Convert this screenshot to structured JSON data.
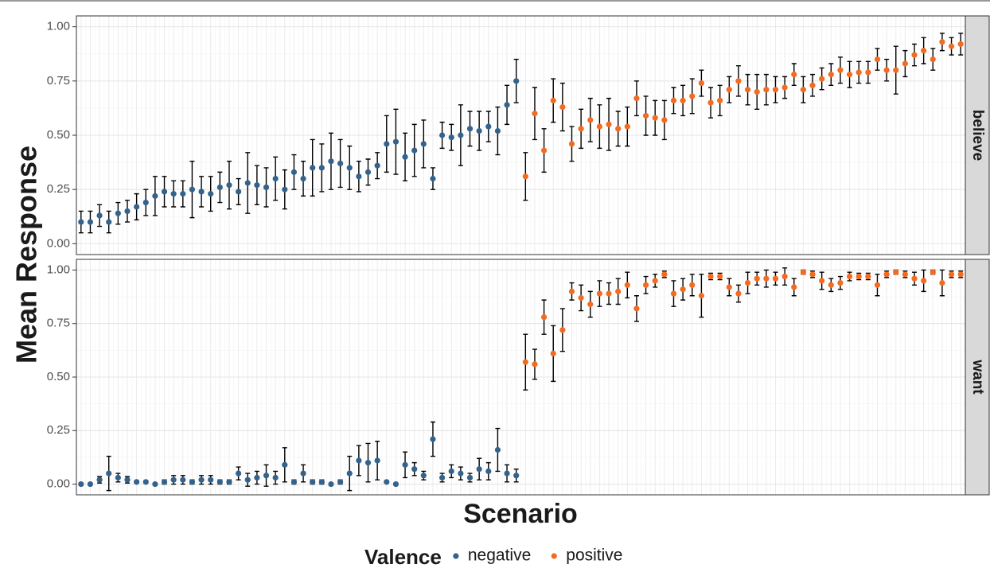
{
  "chart_data": {
    "type": "scatter",
    "y_label": "Mean Response",
    "x_label": "Scenario",
    "legend_title": "Valence",
    "ylim": [
      -0.05,
      1.05
    ],
    "yticks": [
      {
        "value": 0,
        "label": "0.00"
      },
      {
        "value": 0.25,
        "label": "0.25"
      },
      {
        "value": 0.5,
        "label": "0.50"
      },
      {
        "value": 0.75,
        "label": "0.75"
      },
      {
        "value": 1,
        "label": "1.00"
      }
    ],
    "grid": true,
    "categories": [
      null,
      null,
      null,
      null,
      null,
      null,
      null,
      null,
      null,
      null,
      null,
      null,
      null,
      null,
      null,
      null,
      null,
      null,
      null,
      null,
      null,
      null,
      null,
      null,
      null,
      null,
      null,
      null,
      null,
      null,
      null,
      null,
      null,
      null,
      null,
      null,
      null,
      null,
      null,
      null,
      null,
      null,
      null,
      null,
      null,
      null,
      null,
      null,
      null,
      null,
      null,
      null,
      null,
      null,
      null,
      null,
      null,
      null,
      null,
      null,
      null,
      null,
      null,
      null,
      null,
      null,
      null,
      null,
      null,
      null,
      null,
      null,
      null,
      null,
      null,
      null,
      null,
      null,
      null,
      null,
      null,
      null,
      null,
      null,
      null,
      null,
      null,
      null,
      null,
      null,
      null,
      null,
      null,
      null,
      null,
      null
    ],
    "facets": [
      {
        "label": "believe",
        "series": [
          {
            "name": "negative",
            "color": "#33638d",
            "values": [
              0.1,
              0.1,
              0.13,
              0.1,
              0.14,
              0.15,
              0.17,
              0.19,
              0.22,
              0.24,
              0.23,
              0.23,
              0.25,
              0.24,
              0.23,
              0.26,
              0.27,
              0.24,
              0.28,
              0.27,
              0.26,
              0.3,
              0.25,
              0.33,
              0.3,
              0.35,
              0.35,
              0.38,
              0.37,
              0.35,
              0.31,
              0.33,
              0.36,
              0.46,
              0.47,
              0.4,
              0.43,
              0.46,
              0.3,
              0.5,
              0.49,
              0.5,
              0.53,
              0.52,
              0.54,
              0.52,
              0.64,
              0.75,
              null,
              null,
              null,
              null,
              null,
              null,
              null,
              null,
              null,
              null,
              null,
              null,
              null,
              null,
              null,
              null,
              null,
              null,
              null,
              null,
              null,
              null,
              null,
              null,
              null,
              null,
              null,
              null,
              null,
              null,
              null,
              null,
              null,
              null,
              null,
              null,
              null,
              null,
              null,
              null,
              null,
              null,
              null,
              null,
              null,
              null,
              null,
              null
            ],
            "errors": [
              0.05,
              0.05,
              0.05,
              0.05,
              0.05,
              0.05,
              0.06,
              0.06,
              0.09,
              0.07,
              0.06,
              0.06,
              0.13,
              0.07,
              0.08,
              0.07,
              0.11,
              0.06,
              0.14,
              0.09,
              0.09,
              0.1,
              0.09,
              0.08,
              0.08,
              0.13,
              0.11,
              0.13,
              0.11,
              0.1,
              0.07,
              0.06,
              0.06,
              0.13,
              0.15,
              0.11,
              0.12,
              0.11,
              0.05,
              0.06,
              0.06,
              0.14,
              0.08,
              0.09,
              0.07,
              0.11,
              0.09,
              0.1,
              null,
              null,
              null,
              null,
              null,
              null,
              null,
              null,
              null,
              null,
              null,
              null,
              null,
              null,
              null,
              null,
              null,
              null,
              null,
              null,
              null,
              null,
              null,
              null,
              null,
              null,
              null,
              null,
              null,
              null,
              null,
              null,
              null,
              null,
              null,
              null,
              null,
              null,
              null,
              null,
              null,
              null,
              null,
              null,
              null,
              null,
              null,
              null
            ]
          },
          {
            "name": "positive",
            "color": "#f26b21",
            "values": [
              null,
              null,
              null,
              null,
              null,
              null,
              null,
              null,
              null,
              null,
              null,
              null,
              null,
              null,
              null,
              null,
              null,
              null,
              null,
              null,
              null,
              null,
              null,
              null,
              null,
              null,
              null,
              null,
              null,
              null,
              null,
              null,
              null,
              null,
              null,
              null,
              null,
              null,
              null,
              null,
              null,
              null,
              null,
              null,
              null,
              null,
              null,
              null,
              0.31,
              0.6,
              0.43,
              0.66,
              0.63,
              0.46,
              0.53,
              0.57,
              0.54,
              0.55,
              0.53,
              0.54,
              0.67,
              0.59,
              0.58,
              0.57,
              0.66,
              0.66,
              0.68,
              0.74,
              0.65,
              0.66,
              0.71,
              0.75,
              0.71,
              0.7,
              0.71,
              0.71,
              0.72,
              0.78,
              0.71,
              0.73,
              0.76,
              0.78,
              0.8,
              0.78,
              0.79,
              0.79,
              0.85,
              0.8,
              0.8,
              0.83,
              0.87,
              0.89,
              0.85,
              0.93,
              0.91,
              0.92
            ],
            "errors": [
              null,
              null,
              null,
              null,
              null,
              null,
              null,
              null,
              null,
              null,
              null,
              null,
              null,
              null,
              null,
              null,
              null,
              null,
              null,
              null,
              null,
              null,
              null,
              null,
              null,
              null,
              null,
              null,
              null,
              null,
              null,
              null,
              null,
              null,
              null,
              null,
              null,
              null,
              null,
              null,
              null,
              null,
              null,
              null,
              null,
              null,
              null,
              null,
              0.11,
              0.12,
              0.1,
              0.1,
              0.11,
              0.08,
              0.09,
              0.1,
              0.1,
              0.12,
              0.08,
              0.09,
              0.08,
              0.09,
              0.08,
              0.09,
              0.06,
              0.07,
              0.08,
              0.06,
              0.07,
              0.07,
              0.06,
              0.07,
              0.07,
              0.08,
              0.07,
              0.06,
              0.05,
              0.05,
              0.06,
              0.05,
              0.05,
              0.05,
              0.06,
              0.06,
              0.05,
              0.05,
              0.05,
              0.05,
              0.11,
              0.06,
              0.05,
              0.06,
              0.05,
              0.04,
              0.04,
              0.05
            ]
          }
        ]
      },
      {
        "label": "want",
        "series": [
          {
            "name": "negative",
            "color": "#33638d",
            "values": [
              0.0,
              0.0,
              0.02,
              0.05,
              0.03,
              0.02,
              0.01,
              0.01,
              0.0,
              0.01,
              0.02,
              0.02,
              0.01,
              0.02,
              0.02,
              0.01,
              0.01,
              0.05,
              0.02,
              0.03,
              0.04,
              0.03,
              0.09,
              0.01,
              0.05,
              0.01,
              0.01,
              0.0,
              0.01,
              0.05,
              0.11,
              0.1,
              0.11,
              0.01,
              0.0,
              0.09,
              0.07,
              0.04,
              0.21,
              0.03,
              0.06,
              0.05,
              0.03,
              0.07,
              0.06,
              0.16,
              0.05,
              0.04,
              null,
              null,
              null,
              null,
              null,
              null,
              null,
              null,
              null,
              null,
              null,
              null,
              null,
              null,
              null,
              null,
              null,
              null,
              null,
              null,
              null,
              null,
              null,
              null,
              null,
              null,
              null,
              null,
              null,
              null,
              null,
              null,
              null,
              null,
              null,
              null,
              null,
              null,
              null,
              null,
              null,
              null,
              null,
              null,
              null,
              null,
              null,
              null
            ],
            "errors": [
              0.005,
              0.005,
              0.015,
              0.08,
              0.02,
              0.015,
              0.005,
              0.005,
              0.005,
              0.01,
              0.02,
              0.02,
              0.01,
              0.02,
              0.02,
              0.01,
              0.01,
              0.03,
              0.03,
              0.03,
              0.05,
              0.03,
              0.08,
              0.01,
              0.04,
              0.01,
              0.01,
              0.005,
              0.01,
              0.08,
              0.07,
              0.09,
              0.09,
              0.005,
              0.005,
              0.06,
              0.03,
              0.02,
              0.08,
              0.02,
              0.03,
              0.03,
              0.02,
              0.05,
              0.04,
              0.1,
              0.04,
              0.03,
              null,
              null,
              null,
              null,
              null,
              null,
              null,
              null,
              null,
              null,
              null,
              null,
              null,
              null,
              null,
              null,
              null,
              null,
              null,
              null,
              null,
              null,
              null,
              null,
              null,
              null,
              null,
              null,
              null,
              null,
              null,
              null,
              null,
              null,
              null,
              null,
              null,
              null,
              null,
              null,
              null,
              null,
              null,
              null,
              null,
              null,
              null,
              null
            ]
          },
          {
            "name": "positive",
            "color": "#f26b21",
            "values": [
              null,
              null,
              null,
              null,
              null,
              null,
              null,
              null,
              null,
              null,
              null,
              null,
              null,
              null,
              null,
              null,
              null,
              null,
              null,
              null,
              null,
              null,
              null,
              null,
              null,
              null,
              null,
              null,
              null,
              null,
              null,
              null,
              null,
              null,
              null,
              null,
              null,
              null,
              null,
              null,
              null,
              null,
              null,
              null,
              null,
              null,
              null,
              null,
              0.57,
              0.56,
              0.78,
              0.61,
              0.72,
              0.9,
              0.87,
              0.84,
              0.89,
              0.89,
              0.9,
              0.93,
              0.82,
              0.93,
              0.95,
              0.98,
              0.89,
              0.91,
              0.93,
              0.88,
              0.97,
              0.97,
              0.92,
              0.89,
              0.94,
              0.96,
              0.96,
              0.96,
              0.97,
              0.92,
              0.99,
              0.98,
              0.95,
              0.93,
              0.94,
              0.97,
              0.97,
              0.97,
              0.93,
              0.98,
              0.99,
              0.98,
              0.96,
              0.95,
              0.99,
              0.94,
              0.98,
              0.98
            ],
            "errors": [
              null,
              null,
              null,
              null,
              null,
              null,
              null,
              null,
              null,
              null,
              null,
              null,
              null,
              null,
              null,
              null,
              null,
              null,
              null,
              null,
              null,
              null,
              null,
              null,
              null,
              null,
              null,
              null,
              null,
              null,
              null,
              null,
              null,
              null,
              null,
              null,
              null,
              null,
              null,
              null,
              null,
              null,
              null,
              null,
              null,
              null,
              null,
              null,
              0.13,
              0.07,
              0.08,
              0.13,
              0.1,
              0.04,
              0.06,
              0.06,
              0.06,
              0.05,
              0.06,
              0.06,
              0.06,
              0.04,
              0.03,
              0.015,
              0.06,
              0.05,
              0.05,
              0.1,
              0.015,
              0.015,
              0.04,
              0.04,
              0.05,
              0.03,
              0.04,
              0.03,
              0.04,
              0.04,
              0.01,
              0.015,
              0.04,
              0.03,
              0.03,
              0.02,
              0.015,
              0.015,
              0.05,
              0.015,
              0.01,
              0.015,
              0.03,
              0.05,
              0.01,
              0.06,
              0.015,
              0.015
            ]
          }
        ]
      }
    ]
  }
}
